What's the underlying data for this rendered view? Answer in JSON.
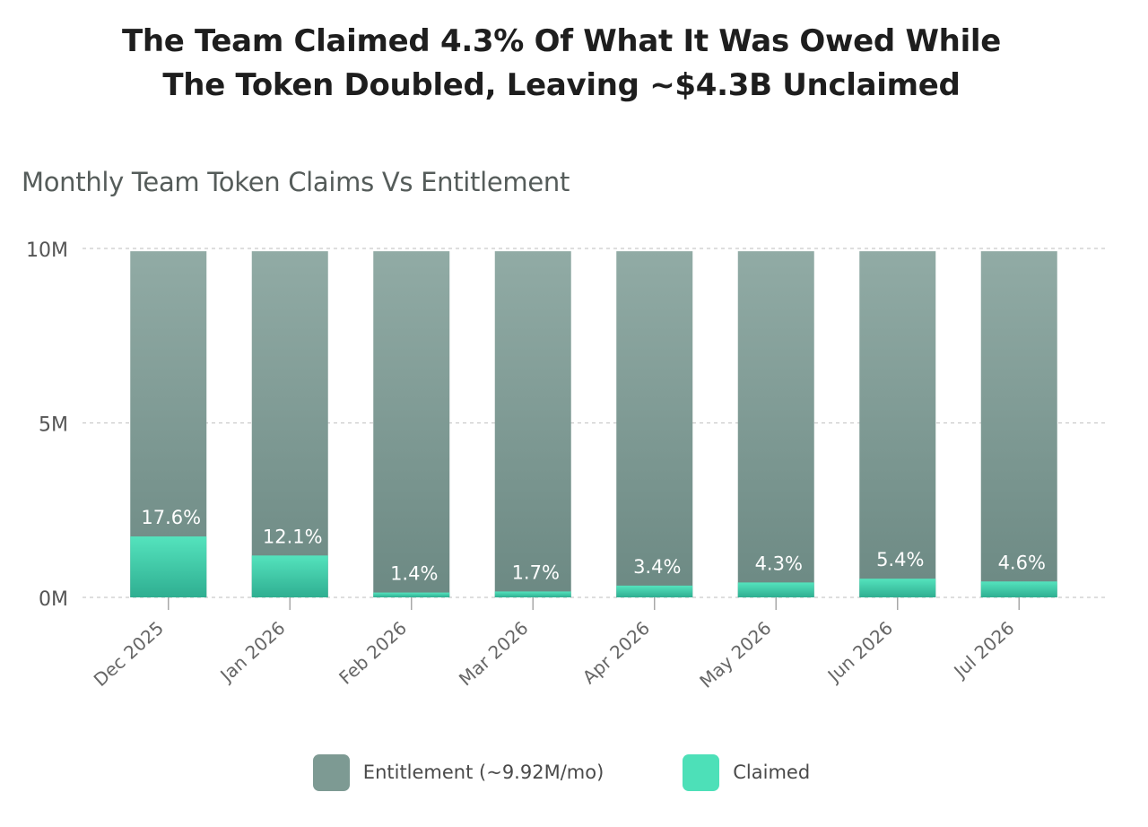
{
  "headline": {
    "line1": "The Team Claimed 4.3% Of What It Was Owed While",
    "line2": "The Token Doubled, Leaving ~$4.3B Unclaimed"
  },
  "chart_data": {
    "type": "bar",
    "stacked": "overlay",
    "title": "Monthly Team Token Claims Vs Entitlement",
    "xlabel": "",
    "ylabel": "",
    "categories": [
      "Dec 2025",
      "Jan 2026",
      "Feb 2026",
      "Mar 2026",
      "Apr 2026",
      "May 2026",
      "Jun 2026",
      "Jul 2026"
    ],
    "series": [
      {
        "name": "Entitlement (~9.92M/mo)",
        "color": "#7d9a93",
        "values": [
          9920000,
          9920000,
          9920000,
          9920000,
          9920000,
          9920000,
          9920000,
          9920000
        ]
      },
      {
        "name": "Claimed",
        "color": "#4de0b8",
        "values": [
          1746000,
          1200000,
          139000,
          169000,
          337000,
          427000,
          536000,
          456000
        ]
      }
    ],
    "data_labels": [
      "17.6%",
      "12.1%",
      "1.4%",
      "1.7%",
      "3.4%",
      "4.3%",
      "5.4%",
      "4.6%"
    ],
    "ylim": [
      0,
      10000000
    ],
    "yticks": [
      0,
      5000000,
      10000000
    ],
    "ytick_labels": [
      "0M",
      "5M",
      "10M"
    ],
    "grid": true,
    "legend_position": "bottom-center"
  }
}
